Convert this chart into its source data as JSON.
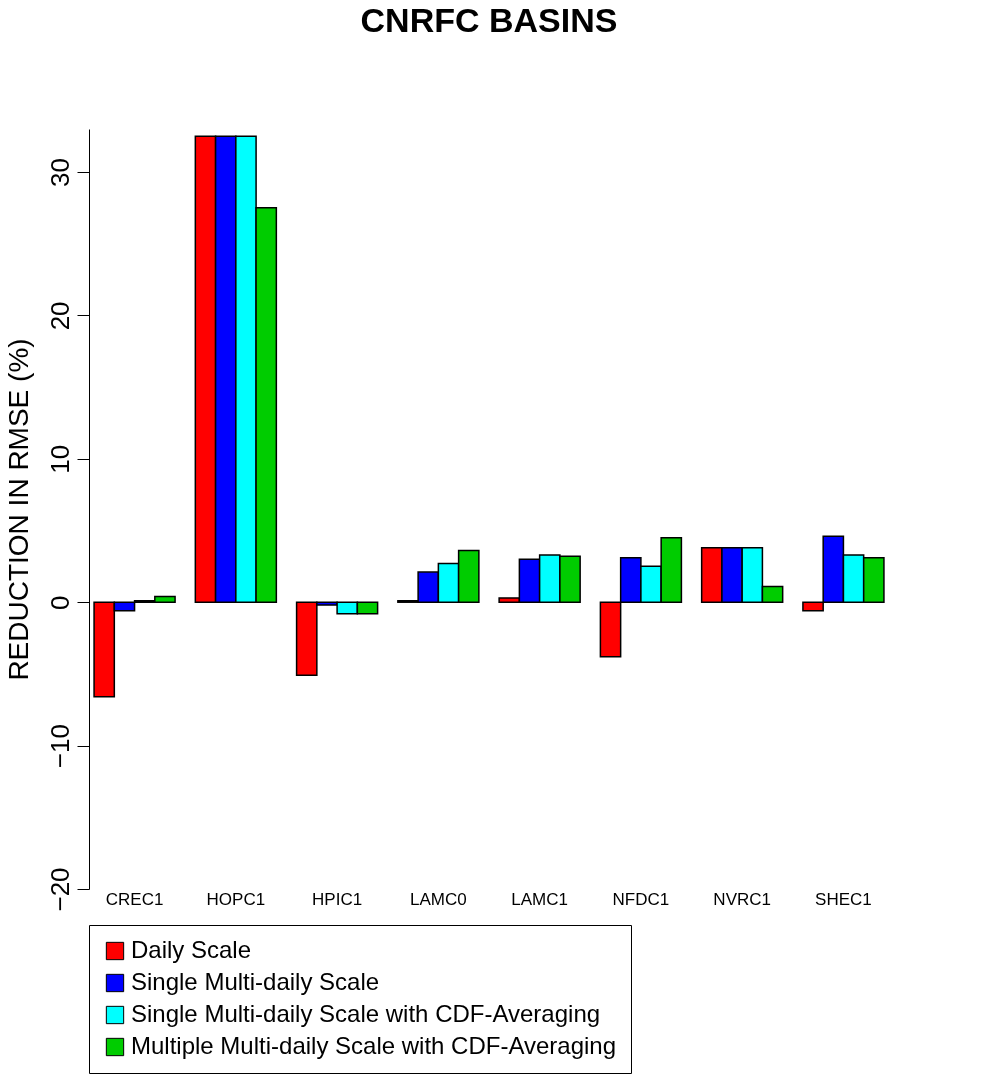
{
  "chart_data": {
    "type": "bar",
    "title": "CNRFC BASINS",
    "ylabel": "REDUCTION IN RMSE (%)",
    "categories": [
      "CREC1",
      "HOPC1",
      "HPIC1",
      "LAMC0",
      "LAMC1",
      "NFDC1",
      "NVRC1",
      "SHEC1"
    ],
    "series": [
      {
        "name": "Daily Scale",
        "color": "#ff0000",
        "values": [
          -6.6,
          32.5,
          -5.1,
          0.1,
          0.3,
          -3.8,
          3.8,
          -0.6
        ]
      },
      {
        "name": "Single Multi-daily Scale",
        "color": "#0000ff",
        "values": [
          -0.6,
          32.5,
          -0.2,
          2.1,
          3.0,
          3.1,
          3.8,
          4.6
        ]
      },
      {
        "name": "Single Multi-daily Scale with CDF-Averaging",
        "color": "#00ffff",
        "values": [
          0.1,
          32.5,
          -0.8,
          2.7,
          3.3,
          2.5,
          3.8,
          3.3
        ]
      },
      {
        "name": "Multiple Multi-daily Scale with CDF-Averaging",
        "color": "#00cc00",
        "values": [
          0.4,
          27.5,
          -0.8,
          3.6,
          3.2,
          4.5,
          1.1,
          3.1
        ]
      }
    ],
    "ylim": [
      -20,
      33
    ],
    "yticks": [
      -20,
      -10,
      0,
      10,
      20,
      30
    ],
    "grid": false,
    "legend": "bottom"
  }
}
